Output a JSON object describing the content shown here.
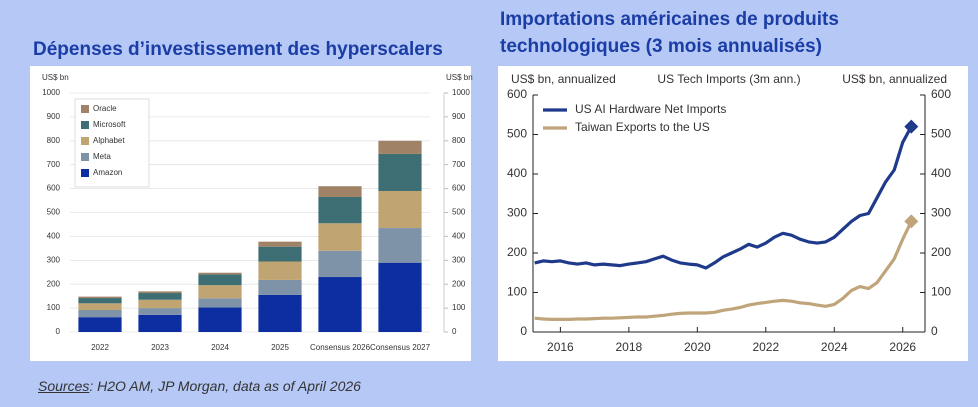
{
  "slide": {
    "title_left": "Dépenses d’investissement des hyperscalers",
    "title_right": "Importations américaines de produits technologiques (3 mois annualisés)",
    "sources_label": "Sources",
    "sources_text": ": H2O AM, JP Morgan, data as of April 2026"
  },
  "chart_data": [
    {
      "type": "bar",
      "stacked": true,
      "ylabel": "US$ bn",
      "y2label": "US$ bn",
      "categories": [
        "2022",
        "2023",
        "2024",
        "2025",
        "Consensus 2026",
        "Consensus 2027"
      ],
      "series": [
        {
          "name": "Amazon",
          "color": "#0d2ea0",
          "values": [
            62,
            72,
            103,
            155,
            230,
            290
          ]
        },
        {
          "name": "Meta",
          "color": "#7f93a8",
          "values": [
            30,
            28,
            38,
            63,
            110,
            145
          ]
        },
        {
          "name": "Alphabet",
          "color": "#c0a472",
          "values": [
            28,
            35,
            55,
            77,
            115,
            155
          ]
        },
        {
          "name": "Microsoft",
          "color": "#3d6e74",
          "values": [
            22,
            28,
            45,
            62,
            110,
            155
          ]
        },
        {
          "name": "Oracle",
          "color": "#a08266",
          "values": [
            6,
            7,
            7,
            21,
            45,
            55
          ]
        }
      ],
      "ylim": [
        0,
        1000
      ],
      "yticks": [
        0,
        100,
        200,
        300,
        400,
        500,
        600,
        700,
        800,
        900,
        1000
      ],
      "y2lim": [
        0,
        1000
      ],
      "y2ticks": [
        0,
        100,
        200,
        300,
        400,
        500,
        600,
        700,
        800,
        900,
        1000
      ],
      "grid": true,
      "legend": "upper left"
    },
    {
      "type": "line",
      "title": "US Tech Imports (3m ann.)",
      "ylabel": "US$ bn, annualized",
      "y2label": "US$ bn, annualized",
      "x": [
        2015.25,
        2015.5,
        2015.75,
        2016,
        2016.25,
        2016.5,
        2016.75,
        2017,
        2017.25,
        2017.5,
        2017.75,
        2018,
        2018.25,
        2018.5,
        2018.75,
        2019,
        2019.25,
        2019.5,
        2019.75,
        2020,
        2020.25,
        2020.5,
        2020.75,
        2021,
        2021.25,
        2021.5,
        2021.75,
        2022,
        2022.25,
        2022.5,
        2022.75,
        2023,
        2023.25,
        2023.5,
        2023.75,
        2024,
        2024.25,
        2024.5,
        2024.75,
        2025,
        2025.25,
        2025.5,
        2025.75,
        2026,
        2026.25
      ],
      "series": [
        {
          "name": "US AI Hardware Net Imports",
          "color": "#1f3a8a",
          "values": [
            175,
            180,
            178,
            180,
            175,
            172,
            175,
            170,
            172,
            170,
            168,
            172,
            175,
            178,
            185,
            192,
            182,
            175,
            172,
            170,
            162,
            175,
            190,
            200,
            210,
            222,
            215,
            225,
            240,
            250,
            245,
            235,
            228,
            225,
            228,
            240,
            260,
            280,
            295,
            300,
            340,
            380,
            410,
            480,
            520
          ]
        },
        {
          "name": "Taiwan Exports to the US",
          "color": "#c0a47a",
          "values": [
            35,
            33,
            32,
            32,
            32,
            33,
            33,
            34,
            35,
            35,
            36,
            37,
            38,
            38,
            40,
            42,
            45,
            47,
            48,
            48,
            48,
            50,
            55,
            58,
            62,
            68,
            72,
            75,
            78,
            80,
            78,
            74,
            72,
            68,
            65,
            70,
            85,
            105,
            115,
            110,
            125,
            155,
            185,
            235,
            280
          ]
        }
      ],
      "xlim": [
        2015.2,
        2026.65
      ],
      "xticks": [
        2016,
        2018,
        2020,
        2022,
        2024,
        2026
      ],
      "ylim": [
        0,
        600
      ],
      "yticks": [
        0,
        100,
        200,
        300,
        400,
        500,
        600
      ],
      "y2lim": [
        0,
        600
      ],
      "y2ticks": [
        0,
        100,
        200,
        300,
        400,
        500,
        600
      ],
      "grid": false,
      "legend": "upper left"
    }
  ]
}
